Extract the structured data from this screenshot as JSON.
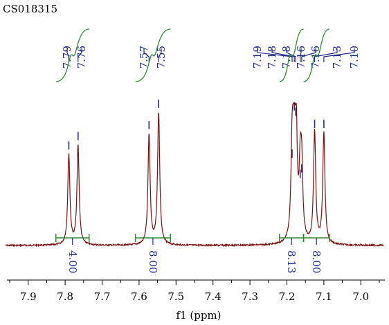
{
  "chart_data": {
    "type": "line",
    "title": "CS018315",
    "xlabel": "f1 (ppm)",
    "xlim": [
      7.95,
      6.95
    ],
    "x_ticks": [
      "7.9",
      "7.8",
      "7.7",
      "7.6",
      "7.5",
      "7.4",
      "7.3",
      "7.2",
      "7.1",
      "7.0"
    ],
    "x_tick_values": [
      7.9,
      7.8,
      7.7,
      7.6,
      7.5,
      7.4,
      7.3,
      7.2,
      7.1,
      7.0
    ],
    "peak_labels": [
      "7.79",
      "7.76",
      "7.57",
      "7.55",
      "7.19",
      "7.18",
      "7.18",
      "7.16",
      "7.16",
      "7.13",
      "7.10"
    ],
    "peaks": [
      {
        "ppm": 7.79,
        "height": 0.67
      },
      {
        "ppm": 7.765,
        "height": 0.74
      },
      {
        "ppm": 7.573,
        "height": 0.82
      },
      {
        "ppm": 7.547,
        "height": 0.98
      },
      {
        "ppm": 7.186,
        "height": 0.61
      },
      {
        "ppm": 7.18,
        "height": 0.96
      },
      {
        "ppm": 7.176,
        "height": 0.92
      },
      {
        "ppm": 7.164,
        "height": 0.46
      },
      {
        "ppm": 7.16,
        "height": 0.5
      },
      {
        "ppm": 7.125,
        "height": 0.83
      },
      {
        "ppm": 7.1,
        "height": 0.83
      }
    ],
    "integrals": [
      {
        "from": 7.825,
        "to": 7.735,
        "value": "4.00"
      },
      {
        "from": 7.61,
        "to": 7.515,
        "value": "8.00"
      },
      {
        "from": 7.22,
        "to": 7.155,
        "value": "8.13"
      },
      {
        "from": 7.155,
        "to": 7.085,
        "value": "8.00"
      }
    ],
    "colors": {
      "spectrum": "#7a1010",
      "peak_label": "#1f2a8c",
      "integral": "#2e8b2e",
      "axis": "#000000"
    }
  }
}
